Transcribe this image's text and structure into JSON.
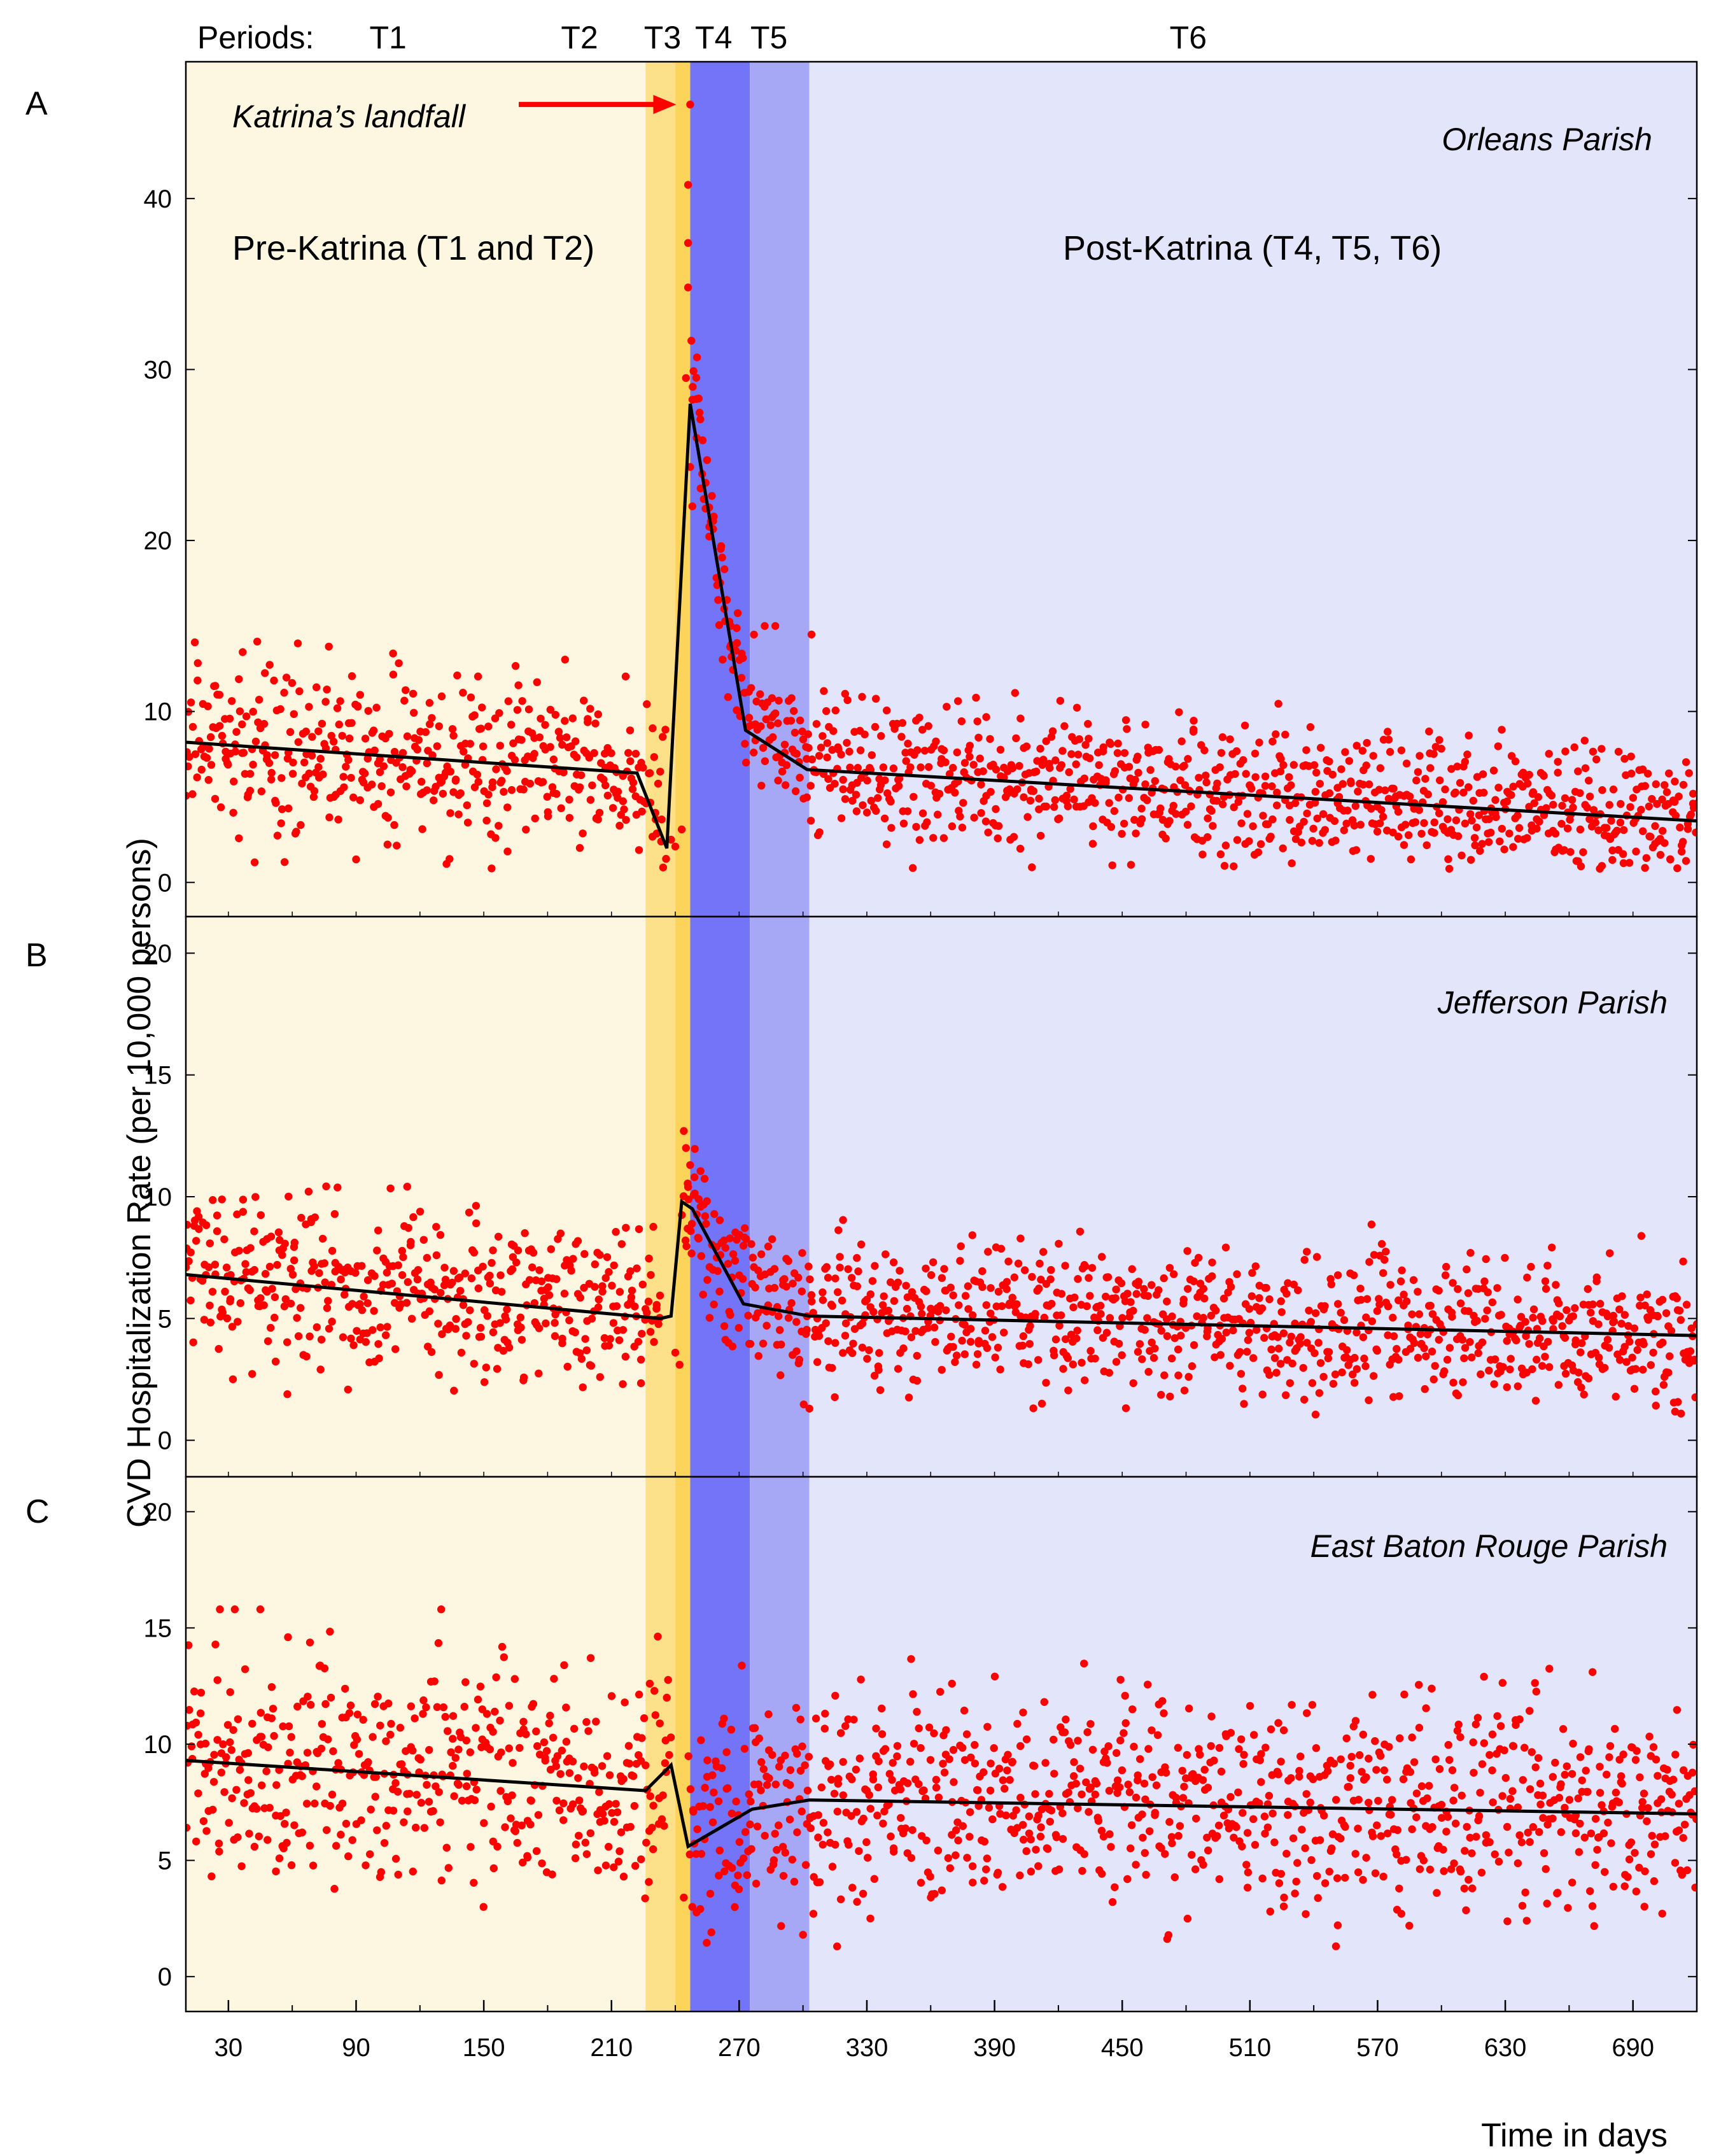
{
  "chart_data": {
    "type": "scatter",
    "x_axis": {
      "label": "Time in days",
      "range": [
        10,
        720
      ],
      "ticks": [
        30,
        90,
        150,
        210,
        270,
        330,
        390,
        450,
        510,
        570,
        630,
        690
      ],
      "minor_step": 30
    },
    "y_label": "CVD Hospitalization Rate (per 10,000 persons)",
    "periods_title": "Periods:",
    "periods": [
      {
        "label": "T1",
        "x0": 10,
        "x1": 226,
        "fill": "#fdf6e0",
        "label_x": 105
      },
      {
        "label": "T2",
        "x0": 226,
        "x1": 240,
        "fill": "#fde08a",
        "label_x": 195
      },
      {
        "label": "T3",
        "x0": 240,
        "x1": 247,
        "fill": "#fdd45a",
        "label_x": 234
      },
      {
        "label": "T4",
        "x0": 247,
        "x1": 275,
        "fill": "#7474f8",
        "label_x": 258
      },
      {
        "label": "T5",
        "x0": 275,
        "x1": 303,
        "fill": "#a6a8f6",
        "label_x": 284
      },
      {
        "label": "T6",
        "x0": 303,
        "x1": 720,
        "fill": "#e3e5fb",
        "label_x": 481
      }
    ],
    "colors": {
      "point": "#ff0000",
      "line": "#000000",
      "arrow": "#ff0000",
      "frame": "#000000"
    },
    "pre_label": "Pre-Katrina (T1 and T2)",
    "post_label": "Post-Katrina (T4, T5, T6)",
    "annotation": {
      "text": "Katrina’s landfall",
      "x": 247,
      "y": 45.5
    },
    "panels": [
      {
        "letter": "A",
        "parish": "Orleans Parish",
        "y_range": [
          -2,
          48
        ],
        "y_ticks": [
          0,
          10,
          20,
          30,
          40
        ],
        "trend": [
          [
            10,
            8.2
          ],
          [
            222,
            6.4
          ],
          [
            236,
            2
          ],
          [
            247,
            28
          ],
          [
            273,
            8.9
          ],
          [
            302,
            6.6
          ],
          [
            720,
            3.6
          ]
        ],
        "pre_center": [
          [
            10,
            8.2
          ],
          [
            222,
            6.4
          ],
          [
            236,
            4.0
          ]
        ],
        "pre_spread": 2.4,
        "post_center": [
          [
            247,
            30
          ],
          [
            256,
            22
          ],
          [
            266,
            14
          ],
          [
            275,
            10.5
          ],
          [
            290,
            8.8
          ],
          [
            303,
            7.2
          ],
          [
            340,
            6.5
          ],
          [
            720,
            3.6
          ]
        ],
        "post_spread": 2.0,
        "outliers": [
          [
            247,
            45.5
          ],
          [
            246,
            40.8
          ],
          [
            246,
            37.4
          ],
          [
            246,
            34.8
          ],
          [
            245,
            29.5
          ],
          [
            247,
            24.3
          ],
          [
            248,
            22
          ],
          [
            251,
            28.3
          ],
          [
            250,
            26
          ],
          [
            256,
            20.8
          ],
          [
            262,
            19
          ],
          [
            263,
            16
          ],
          [
            266,
            15
          ],
          [
            269,
            14
          ],
          [
            282,
            15
          ],
          [
            287,
            15
          ],
          [
            304,
            14.5
          ],
          [
            240,
            2.1
          ],
          [
            238,
            2.5
          ],
          [
            243,
            3.1
          ]
        ]
      },
      {
        "letter": "B",
        "parish": "Jefferson Parish",
        "y_range": [
          -1.5,
          21.5
        ],
        "y_ticks": [
          0,
          5,
          10,
          15,
          20
        ],
        "trend": [
          [
            10,
            6.8
          ],
          [
            233,
            5
          ],
          [
            238,
            5.1
          ],
          [
            243,
            9.8
          ],
          [
            248,
            9.5
          ],
          [
            272,
            5.6
          ],
          [
            303,
            5.1
          ],
          [
            720,
            4.3
          ]
        ],
        "pre_center": [
          [
            10,
            6.8
          ],
          [
            233,
            5.0
          ]
        ],
        "pre_spread": 1.7,
        "post_center": [
          [
            243,
            9.8
          ],
          [
            260,
            7.5
          ],
          [
            275,
            6.0
          ],
          [
            303,
            5.2
          ],
          [
            720,
            4.3
          ]
        ],
        "post_spread": 1.4,
        "outliers": [
          [
            244,
            12.7
          ],
          [
            245,
            12
          ],
          [
            247,
            11.3
          ],
          [
            249,
            10.8
          ],
          [
            246,
            10.4
          ],
          [
            251,
            9.9
          ],
          [
            254,
            9.2
          ],
          [
            240,
            3.6
          ],
          [
            242,
            3.1
          ],
          [
            265,
            4.0
          ]
        ]
      },
      {
        "letter": "C",
        "parish": "East Baton Rouge Parish",
        "y_range": [
          -1.5,
          21.5
        ],
        "y_ticks": [
          0,
          5,
          10,
          15,
          20
        ],
        "trend": [
          [
            10,
            9.3
          ],
          [
            226,
            8.0
          ],
          [
            238,
            9.1
          ],
          [
            246,
            5.6
          ],
          [
            276,
            7.2
          ],
          [
            303,
            7.6
          ],
          [
            720,
            7.0
          ]
        ],
        "pre_center": [
          [
            10,
            9.3
          ],
          [
            226,
            8.0
          ],
          [
            238,
            9.1
          ]
        ],
        "pre_spread": 2.2,
        "post_center": [
          [
            246,
            6.0
          ],
          [
            276,
            7.0
          ],
          [
            303,
            7.8
          ],
          [
            720,
            7.2
          ]
        ],
        "post_spread": 2.2,
        "outliers": [
          [
            26,
            15.8
          ],
          [
            45,
            15.8
          ],
          [
            33,
            15.8
          ],
          [
            130,
            15.8
          ],
          [
            58,
            14.6
          ],
          [
            671,
            13.1
          ],
          [
            620,
            12.9
          ],
          [
            370,
            12.6
          ],
          [
            228,
            12.6
          ],
          [
            236,
            12.0
          ],
          [
            248,
            3.0
          ],
          [
            300,
            1.8
          ],
          [
            316,
            1.3
          ],
          [
            244,
            3.4
          ],
          [
            278,
            4.0
          ]
        ]
      }
    ]
  }
}
